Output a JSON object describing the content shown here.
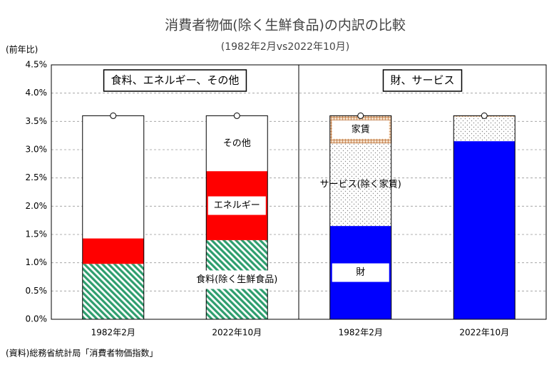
{
  "chart_data": {
    "type": "stacked_bar",
    "title": "消費者物価(除く生鮮食品)の内訳の比較",
    "subtitle": "(1982年2月vs2022年10月)",
    "y_label": "(前年比)",
    "source": "(資料)総務省統計局「消費者物価指数」",
    "ylim": [
      0,
      4.5
    ],
    "yticks": [
      {
        "value": 0,
        "label": "0.0%"
      },
      {
        "value": 0.5,
        "label": "0.5%"
      },
      {
        "value": 1,
        "label": "1.0%"
      },
      {
        "value": 1.5,
        "label": "1.5%"
      },
      {
        "value": 2,
        "label": "2.0%"
      },
      {
        "value": 2.5,
        "label": "2.5%"
      },
      {
        "value": 3,
        "label": "3.0%"
      },
      {
        "value": 3.5,
        "label": "3.5%"
      },
      {
        "value": 4,
        "label": "4.0%"
      },
      {
        "value": 4.5,
        "label": "4.5%"
      }
    ],
    "grid": true,
    "panels": [
      {
        "title": "食料、エネルギー、その他",
        "categories": [
          "1982年2月",
          "2022年10月"
        ],
        "totals": [
          3.6,
          3.6
        ],
        "series": [
          {
            "name": "食料(除く生鮮食品)",
            "color": "#2e9e6e",
            "pattern": "hatch",
            "values": [
              0.98,
              1.4
            ]
          },
          {
            "name": "エネルギー",
            "color": "#ff0000",
            "pattern": "solid",
            "values": [
              0.45,
              1.22
            ]
          },
          {
            "name": "その他",
            "color": "#ffffff",
            "pattern": "solid",
            "values": [
              2.17,
              0.98
            ]
          }
        ]
      },
      {
        "title": "財、サービス",
        "categories": [
          "1982年2月",
          "2022年10月"
        ],
        "totals": [
          3.6,
          3.6
        ],
        "series": [
          {
            "name": "財",
            "color": "#0000ff",
            "pattern": "solid",
            "values": [
              1.65,
              3.15
            ]
          },
          {
            "name": "サービス(除く家賃)",
            "color": "#888888",
            "pattern": "dots",
            "values": [
              1.46,
              0.43
            ]
          },
          {
            "name": "家賃",
            "color": "#b5652a",
            "pattern": "grid",
            "values": [
              0.49,
              0.02
            ]
          }
        ]
      }
    ]
  }
}
